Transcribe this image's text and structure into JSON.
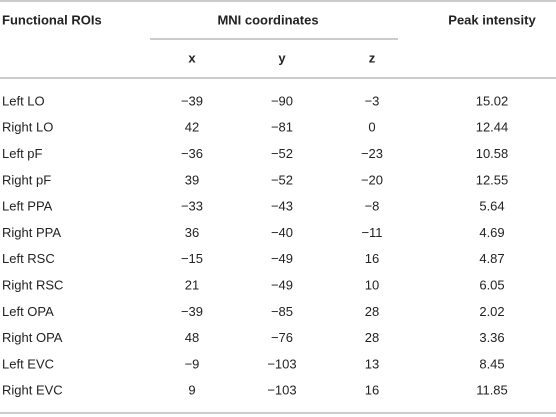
{
  "table": {
    "headers": {
      "roi": "Functional ROIs",
      "mni": "MNI coordinates",
      "x": "x",
      "y": "y",
      "z": "z",
      "peak": "Peak intensity"
    },
    "rows": [
      [
        "Left LO",
        "−39",
        "−90",
        "−3",
        "15.02"
      ],
      [
        "Right LO",
        "42",
        "−81",
        "0",
        "12.44"
      ],
      [
        "Left pF",
        "−36",
        "−52",
        "−23",
        "10.58"
      ],
      [
        "Right pF",
        "39",
        "−52",
        "−20",
        "12.55"
      ],
      [
        "Left PPA",
        "−33",
        "−43",
        "−8",
        "5.64"
      ],
      [
        "Right PPA",
        "36",
        "−40",
        "−11",
        "4.69"
      ],
      [
        "Left RSC",
        "−15",
        "−49",
        "16",
        "4.87"
      ],
      [
        "Right RSC",
        "21",
        "−49",
        "10",
        "6.05"
      ],
      [
        "Left OPA",
        "−39",
        "−85",
        "28",
        "2.02"
      ],
      [
        "Right OPA",
        "48",
        "−76",
        "28",
        "3.36"
      ],
      [
        "Left EVC",
        "−9",
        "−103",
        "13",
        "8.45"
      ],
      [
        "Right EVC",
        "9",
        "−103",
        "16",
        "11.85"
      ]
    ]
  }
}
